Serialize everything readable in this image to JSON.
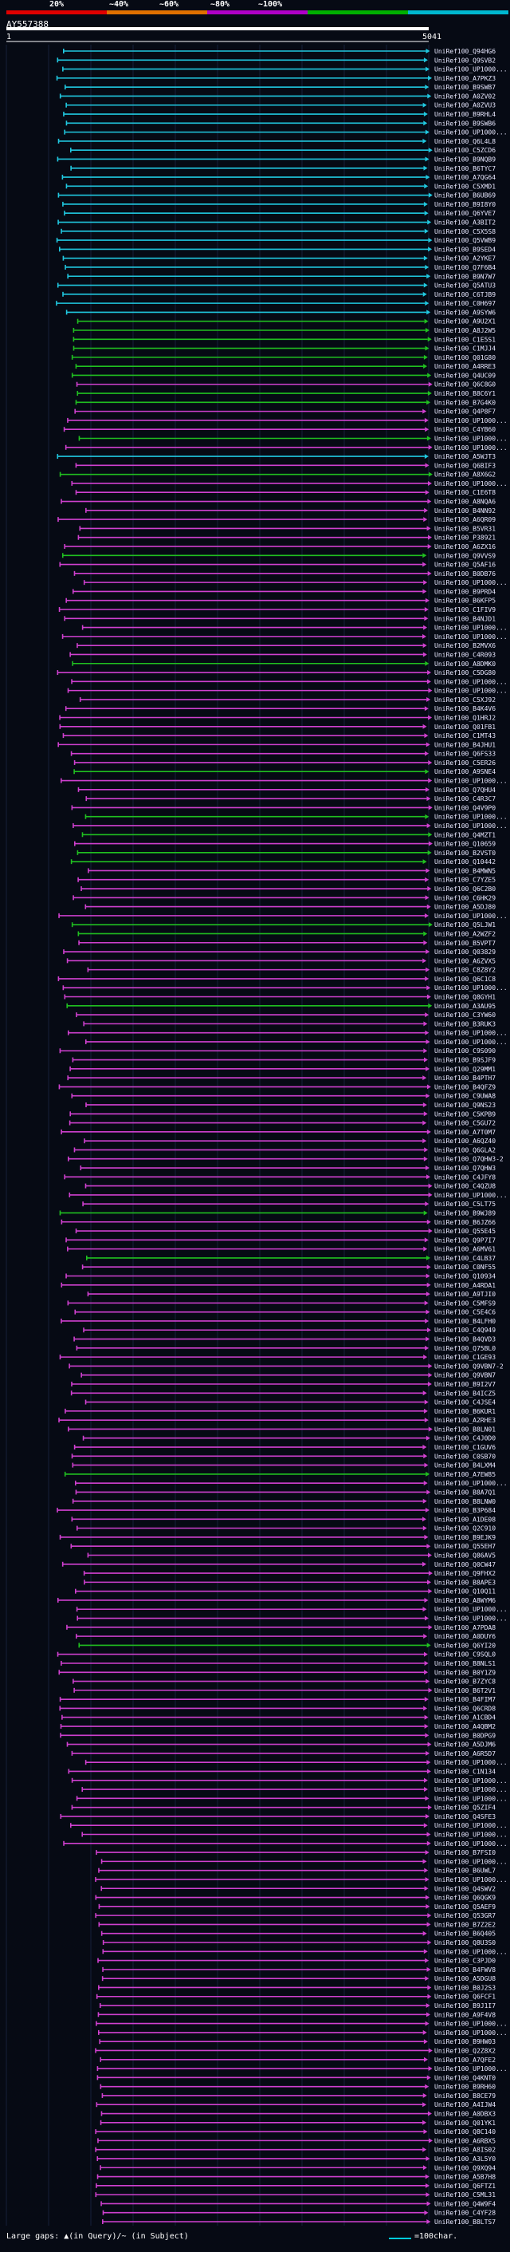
{
  "query": {
    "id": "AY557388",
    "start": "1",
    "end": "5041"
  },
  "colors": {
    "bg": "#060a14",
    "red": "#e00000",
    "orange": "#e07000",
    "purple": "#b000c8",
    "green": "#00b000",
    "cyan": "#00b8d0",
    "magenta": "#d040d0",
    "lime": "#20c020",
    "cyanline": "#20c8e0"
  },
  "identity_scale": [
    {
      "label": "20%",
      "color": "#e00000"
    },
    {
      "label": "~40%",
      "color": "#e07000"
    },
    {
      "label": "~60%",
      "color": "#b000c8"
    },
    {
      "label": "~80%",
      "color": "#00b000"
    },
    {
      "label": "~100%",
      "color": "#00b8d0"
    }
  ],
  "legend": {
    "text": "Large gaps: ▲(in Query)/~ (in Subject)",
    "scale": "=100char."
  },
  "hits": [
    {
      "label": "UniRef100_Q94HG6",
      "c": "c"
    },
    {
      "label": "UniRef100_Q9SVB2",
      "c": "c"
    },
    {
      "label": "UniRef100_UP1000...",
      "c": "c"
    },
    {
      "label": "UniRef100_A7PKZ3",
      "c": "c"
    },
    {
      "label": "UniRef100_B9SWB7",
      "c": "c"
    },
    {
      "label": "UniRef100_A0ZV02",
      "c": "c"
    },
    {
      "label": "UniRef100_A0ZVU3",
      "c": "c"
    },
    {
      "label": "UniRef100_B9RHL4",
      "c": "c"
    },
    {
      "label": "UniRef100_B9SWB6",
      "c": "c"
    },
    {
      "label": "UniRef100_UP1000...",
      "c": "c"
    },
    {
      "label": "UniRef100_Q6L4L8",
      "c": "c"
    },
    {
      "label": "UniRef100_C5ZCD6",
      "c": "c"
    },
    {
      "label": "UniRef100_B9NQB9",
      "c": "c"
    },
    {
      "label": "UniRef100_B6TYC7",
      "c": "c"
    },
    {
      "label": "UniRef100_A7QG64",
      "c": "c"
    },
    {
      "label": "UniRef100_C5XMD1",
      "c": "c"
    },
    {
      "label": "UniRef100_B6UB69",
      "c": "c"
    },
    {
      "label": "UniRef100_B9I8Y0",
      "c": "c"
    },
    {
      "label": "UniRef100_Q6YVE7",
      "c": "c"
    },
    {
      "label": "UniRef100_A3BIT2",
      "c": "c"
    },
    {
      "label": "UniRef100_C5X5S8",
      "c": "c"
    },
    {
      "label": "UniRef100_Q5VWB9",
      "c": "c"
    },
    {
      "label": "UniRef100_B9SED4",
      "c": "c"
    },
    {
      "label": "UniRef100_A2YKE7",
      "c": "c"
    },
    {
      "label": "UniRef100_Q7F6B4",
      "c": "c"
    },
    {
      "label": "UniRef100_B9N7W7",
      "c": "c"
    },
    {
      "label": "UniRef100_Q5ATU3",
      "c": "c"
    },
    {
      "label": "UniRef100_C6TJB9",
      "c": "c"
    },
    {
      "label": "UniRef100_C0H697",
      "c": "c"
    },
    {
      "label": "UniRef100_A9SYW6",
      "c": "c"
    },
    {
      "label": "UniRef100_A9U2X1",
      "c": "g"
    },
    {
      "label": "UniRef100_A8J2W5",
      "c": "g"
    },
    {
      "label": "UniRef100_C1E5S1",
      "c": "g"
    },
    {
      "label": "UniRef100_C1MJJ4",
      "c": "g"
    },
    {
      "label": "UniRef100_Q01G80",
      "c": "g"
    },
    {
      "label": "UniRef100_A4RRE3",
      "c": "g"
    },
    {
      "label": "UniRef100_Q4UC09",
      "c": "g"
    },
    {
      "label": "UniRef100_Q6C8G0",
      "c": "m"
    },
    {
      "label": "UniRef100_B8C6Y1",
      "c": "g"
    },
    {
      "label": "UniRef100_B7G4K0",
      "c": "g"
    },
    {
      "label": "UniRef100_Q4P8F7",
      "c": "m"
    },
    {
      "label": "UniRef100_UP1000...",
      "c": "m"
    },
    {
      "label": "UniRef100_C4YB60",
      "c": "m"
    },
    {
      "label": "UniRef100_UP1000...",
      "c": "g"
    },
    {
      "label": "UniRef100_UP1000...",
      "c": "m"
    },
    {
      "label": "UniRef100_A5WJT3",
      "c": "c"
    },
    {
      "label": "UniRef100_Q6BIF3",
      "c": "m"
    },
    {
      "label": "UniRef100_A8X6G2",
      "c": "g"
    },
    {
      "label": "UniRef100_UP1000...",
      "c": "m"
    },
    {
      "label": "UniRef100_C1E6T8",
      "c": "m"
    },
    {
      "label": "UniRef100_A8NQA6",
      "c": "m"
    },
    {
      "label": "UniRef100_B4NN92",
      "c": "m"
    },
    {
      "label": "UniRef100_A6QR09",
      "c": "m"
    },
    {
      "label": "UniRef100_B5VR31",
      "c": "m"
    },
    {
      "label": "UniRef100_P38921",
      "c": "m"
    },
    {
      "label": "UniRef100_A6ZX16",
      "c": "m"
    },
    {
      "label": "UniRef100_Q9VVS9",
      "c": "g"
    },
    {
      "label": "UniRef100_Q5AF16",
      "c": "m"
    },
    {
      "label": "UniRef100_B0DB76",
      "c": "m"
    },
    {
      "label": "UniRef100_UP1000...",
      "c": "m"
    },
    {
      "label": "UniRef100_B9PRD4",
      "c": "m"
    },
    {
      "label": "UniRef100_B6KFP5",
      "c": "m"
    },
    {
      "label": "UniRef100_C1FIV9",
      "c": "m"
    },
    {
      "label": "UniRef100_B4NJD1",
      "c": "m"
    },
    {
      "label": "UniRef100_UP1000...",
      "c": "m"
    },
    {
      "label": "UniRef100_UP1000...",
      "c": "m"
    },
    {
      "label": "UniRef100_B2MVX6",
      "c": "m"
    },
    {
      "label": "UniRef100_C4R093",
      "c": "m"
    },
    {
      "label": "UniRef100_A8DMK0",
      "c": "g"
    },
    {
      "label": "UniRef100_C5DG80",
      "c": "m"
    },
    {
      "label": "UniRef100_UP1000...",
      "c": "m"
    },
    {
      "label": "UniRef100_UP1000...",
      "c": "m"
    },
    {
      "label": "UniRef100_C5XJ92",
      "c": "m"
    },
    {
      "label": "UniRef100_B4K4V6",
      "c": "m"
    },
    {
      "label": "UniRef100_Q1HRJ2",
      "c": "m"
    },
    {
      "label": "UniRef100_Q01FB1",
      "c": "m"
    },
    {
      "label": "UniRef100_C1MT43",
      "c": "m"
    },
    {
      "label": "UniRef100_B4JHU1",
      "c": "m"
    },
    {
      "label": "UniRef100_Q6FS33",
      "c": "m"
    },
    {
      "label": "UniRef100_C5ER26",
      "c": "m"
    },
    {
      "label": "UniRef100_A9SNE4",
      "c": "g"
    },
    {
      "label": "UniRef100_UP1000...",
      "c": "m"
    },
    {
      "label": "UniRef100_Q7QHU4",
      "c": "m"
    },
    {
      "label": "UniRef100_C4R3C7",
      "c": "m"
    },
    {
      "label": "UniRef100_Q4V9P0",
      "c": "m"
    },
    {
      "label": "UniRef100_UP1000...",
      "c": "g"
    },
    {
      "label": "UniRef100_UP1000...",
      "c": "m"
    },
    {
      "label": "UniRef100_Q4MZT1",
      "c": "g"
    },
    {
      "label": "UniRef100_Q10659",
      "c": "m"
    },
    {
      "label": "UniRef100_B2VST0",
      "c": "g"
    },
    {
      "label": "UniRef100_Q10442",
      "c": "g"
    },
    {
      "label": "UniRef100_B4MWN5",
      "c": "m"
    },
    {
      "label": "UniRef100_C7YZE5",
      "c": "m"
    },
    {
      "label": "UniRef100_Q6C2B0",
      "c": "m"
    },
    {
      "label": "UniRef100_C6HK29",
      "c": "m"
    },
    {
      "label": "UniRef100_A5DJ80",
      "c": "m"
    },
    {
      "label": "UniRef100_UP1000...",
      "c": "m"
    },
    {
      "label": "UniRef100_Q5LJW1",
      "c": "g"
    },
    {
      "label": "UniRef100_A2WZF2",
      "c": "g"
    },
    {
      "label": "UniRef100_B5VPT7",
      "c": "m"
    },
    {
      "label": "UniRef100_Q03829",
      "c": "m"
    },
    {
      "label": "UniRef100_A6ZVX5",
      "c": "m"
    },
    {
      "label": "UniRef100_C8Z8Y2",
      "c": "m"
    },
    {
      "label": "UniRef100_Q6C1C8",
      "c": "m"
    },
    {
      "label": "UniRef100_UP1000...",
      "c": "m"
    },
    {
      "label": "UniRef100_Q8GYH1",
      "c": "m"
    },
    {
      "label": "UniRef100_A3AU95",
      "c": "g"
    },
    {
      "label": "UniRef100_C3YW60",
      "c": "m"
    },
    {
      "label": "UniRef100_B3RUK3",
      "c": "m"
    },
    {
      "label": "UniRef100_UP1000...",
      "c": "m"
    },
    {
      "label": "UniRef100_UP1000...",
      "c": "m"
    },
    {
      "label": "UniRef100_C9S090",
      "c": "m"
    },
    {
      "label": "UniRef100_B9SJF9",
      "c": "m"
    },
    {
      "label": "UniRef100_Q29MM1",
      "c": "m"
    },
    {
      "label": "UniRef100_B4PTH7",
      "c": "m"
    },
    {
      "label": "UniRef100_B4QFZ9",
      "c": "m"
    },
    {
      "label": "UniRef100_C9UWA8",
      "c": "m"
    },
    {
      "label": "UniRef100_Q9NS23",
      "c": "m"
    },
    {
      "label": "UniRef100_C5KPB9",
      "c": "m"
    },
    {
      "label": "UniRef100_C5GU72",
      "c": "m"
    },
    {
      "label": "UniRef100_A7T0M7",
      "c": "m"
    },
    {
      "label": "UniRef100_A6QZ40",
      "c": "m"
    },
    {
      "label": "UniRef100_Q6GLA2",
      "c": "m"
    },
    {
      "label": "UniRef100_Q7QHW3-2",
      "c": "m"
    },
    {
      "label": "UniRef100_Q7QHW3",
      "c": "m"
    },
    {
      "label": "UniRef100_C4JFY8",
      "c": "m"
    },
    {
      "label": "UniRef100_C4QZU8",
      "c": "m"
    },
    {
      "label": "UniRef100_UP1000...",
      "c": "m"
    },
    {
      "label": "UniRef100_C5LT75",
      "c": "m"
    },
    {
      "label": "UniRef100_B9WJ89",
      "c": "g"
    },
    {
      "label": "UniRef100_B6JZ66",
      "c": "m"
    },
    {
      "label": "UniRef100_Q55E45",
      "c": "m"
    },
    {
      "label": "UniRef100_Q9P7I7",
      "c": "m"
    },
    {
      "label": "UniRef100_A6MV61",
      "c": "m"
    },
    {
      "label": "UniRef100_C4LB37",
      "c": "g"
    },
    {
      "label": "UniRef100_C0NF55",
      "c": "m"
    },
    {
      "label": "UniRef100_Q10934",
      "c": "m"
    },
    {
      "label": "UniRef100_A4RDA1",
      "c": "m"
    },
    {
      "label": "UniRef100_A9TJI0",
      "c": "m"
    },
    {
      "label": "UniRef100_C5MFS9",
      "c": "m"
    },
    {
      "label": "UniRef100_C5E4C6",
      "c": "m"
    },
    {
      "label": "UniRef100_B4LFH0",
      "c": "m"
    },
    {
      "label": "UniRef100_C4Q949",
      "c": "m"
    },
    {
      "label": "UniRef100_B4QVD3",
      "c": "m"
    },
    {
      "label": "UniRef100_Q75BL0",
      "c": "m"
    },
    {
      "label": "UniRef100_C1GE93",
      "c": "m"
    },
    {
      "label": "UniRef100_Q9VBN7-2",
      "c": "m"
    },
    {
      "label": "UniRef100_Q9VBN7",
      "c": "m"
    },
    {
      "label": "UniRef100_B9I2V7",
      "c": "m"
    },
    {
      "label": "UniRef100_B4ICZ5",
      "c": "m"
    },
    {
      "label": "UniRef100_C4JSE4",
      "c": "m"
    },
    {
      "label": "UniRef100_B6KUR1",
      "c": "m"
    },
    {
      "label": "UniRef100_A2RHE3",
      "c": "m"
    },
    {
      "label": "UniRef100_B8LN01",
      "c": "m"
    },
    {
      "label": "UniRef100_C4J0D0",
      "c": "m"
    },
    {
      "label": "UniRef100_C1GUV6",
      "c": "m"
    },
    {
      "label": "UniRef100_C0SB70",
      "c": "m"
    },
    {
      "label": "UniRef100_B4LXM4",
      "c": "m"
    },
    {
      "label": "UniRef100_A7EW85",
      "c": "g"
    },
    {
      "label": "UniRef100_UP1000...",
      "c": "m"
    },
    {
      "label": "UniRef100_B8A7Q1",
      "c": "m"
    },
    {
      "label": "UniRef100_B8LNW0",
      "c": "m"
    },
    {
      "label": "UniRef100_B3P684",
      "c": "m"
    },
    {
      "label": "UniRef100_A1DE08",
      "c": "m"
    },
    {
      "label": "UniRef100_Q2C910",
      "c": "m"
    },
    {
      "label": "UniRef100_B9EJK9",
      "c": "m"
    },
    {
      "label": "UniRef100_Q55EH7",
      "c": "m"
    },
    {
      "label": "UniRef100_Q86AV5",
      "c": "m"
    },
    {
      "label": "UniRef100_Q0CW47",
      "c": "m"
    },
    {
      "label": "UniRef100_Q9FHX2",
      "c": "m"
    },
    {
      "label": "UniRef100_B8APE3",
      "c": "m"
    },
    {
      "label": "UniRef100_Q10Q11",
      "c": "m"
    },
    {
      "label": "UniRef100_A8WYM6",
      "c": "m"
    },
    {
      "label": "UniRef100_UP1000...",
      "c": "m"
    },
    {
      "label": "UniRef100_UP1000...",
      "c": "m"
    },
    {
      "label": "UniRef100_A7PDA8",
      "c": "m"
    },
    {
      "label": "UniRef100_A0DUY6",
      "c": "m"
    },
    {
      "label": "UniRef100_Q6YI20",
      "c": "g"
    },
    {
      "label": "UniRef100_C9SQL0",
      "c": "m"
    },
    {
      "label": "UniRef100_B8NLS1",
      "c": "m"
    },
    {
      "label": "UniRef100_B0Y1Z9",
      "c": "m"
    },
    {
      "label": "UniRef100_B7ZYC8",
      "c": "m"
    },
    {
      "label": "UniRef100_B6T2V1",
      "c": "m"
    },
    {
      "label": "UniRef100_B4FIM7",
      "c": "m"
    },
    {
      "label": "UniRef100_Q6CRD8",
      "c": "m"
    },
    {
      "label": "UniRef100_A1CBD4",
      "c": "m"
    },
    {
      "label": "UniRef100_A4QBM2",
      "c": "m"
    },
    {
      "label": "UniRef100_B0DPG9",
      "c": "m"
    },
    {
      "label": "UniRef100_A5DJM6",
      "c": "m"
    },
    {
      "label": "UniRef100_A6R5D7",
      "c": "m"
    },
    {
      "label": "UniRef100_UP1000...",
      "c": "m"
    },
    {
      "label": "UniRef100_C1N134",
      "c": "m"
    },
    {
      "label": "UniRef100_UP1000...",
      "c": "m"
    },
    {
      "label": "UniRef100_UP1000...",
      "c": "m"
    },
    {
      "label": "UniRef100_UP1000...",
      "c": "m"
    },
    {
      "label": "UniRef100_Q5ZIF4",
      "c": "m"
    },
    {
      "label": "UniRef100_Q4SFE3",
      "c": "m"
    },
    {
      "label": "UniRef100_UP1000...",
      "c": "m"
    },
    {
      "label": "UniRef100_UP1000...",
      "c": "m"
    },
    {
      "label": "UniRef100_UP1000...",
      "c": "m"
    },
    {
      "label": "UniRef100_B7FSI0",
      "c": "m"
    },
    {
      "label": "UniRef100_UP1000...",
      "c": "m"
    },
    {
      "label": "UniRef100_B6UWL7",
      "c": "m"
    },
    {
      "label": "UniRef100_UP1000...",
      "c": "m"
    },
    {
      "label": "UniRef100_Q4SWV2",
      "c": "m"
    },
    {
      "label": "UniRef100_Q6QGK9",
      "c": "m"
    },
    {
      "label": "UniRef100_Q5AEF9",
      "c": "m"
    },
    {
      "label": "UniRef100_Q53GR7",
      "c": "m"
    },
    {
      "label": "UniRef100_B7Z2E2",
      "c": "m"
    },
    {
      "label": "UniRef100_B6Q405",
      "c": "m"
    },
    {
      "label": "UniRef100_Q8U3S0",
      "c": "m"
    },
    {
      "label": "UniRef100_UP1000...",
      "c": "m"
    },
    {
      "label": "UniRef100_C3PJD0",
      "c": "m"
    },
    {
      "label": "UniRef100_B4FWV8",
      "c": "m"
    },
    {
      "label": "UniRef100_A5DGU8",
      "c": "m"
    },
    {
      "label": "UniRef100_B0J2S3",
      "c": "m"
    },
    {
      "label": "UniRef100_Q6FCF1",
      "c": "m"
    },
    {
      "label": "UniRef100_B9J1I7",
      "c": "m"
    },
    {
      "label": "UniRef100_A9F4V8",
      "c": "m"
    },
    {
      "label": "UniRef100_UP1000...",
      "c": "m"
    },
    {
      "label": "UniRef100_UP1000...",
      "c": "m"
    },
    {
      "label": "UniRef100_B9HW03",
      "c": "m"
    },
    {
      "label": "UniRef100_Q2Z8X2",
      "c": "m"
    },
    {
      "label": "UniRef100_A7QFE2",
      "c": "m"
    },
    {
      "label": "UniRef100_UP1000...",
      "c": "m"
    },
    {
      "label": "UniRef100_Q4KNT0",
      "c": "m"
    },
    {
      "label": "UniRef100_B9RH60",
      "c": "m"
    },
    {
      "label": "UniRef100_B8CE79",
      "c": "m"
    },
    {
      "label": "UniRef100_A4IJW4",
      "c": "m"
    },
    {
      "label": "UniRef100_A0DBX3",
      "c": "m"
    },
    {
      "label": "UniRef100_Q01YK1",
      "c": "m"
    },
    {
      "label": "UniRef100_Q8C140",
      "c": "m"
    },
    {
      "label": "UniRef100_A6RBX5",
      "c": "m"
    },
    {
      "label": "UniRef100_A8IS02",
      "c": "m"
    },
    {
      "label": "UniRef100_A3L5Y0",
      "c": "m"
    },
    {
      "label": "UniRef100_Q9XQ94",
      "c": "m"
    },
    {
      "label": "UniRef100_A5B7H8",
      "c": "m"
    },
    {
      "label": "UniRef100_Q6FTZ1",
      "c": "m"
    },
    {
      "label": "UniRef100_C5ML31",
      "c": "m"
    },
    {
      "label": "UniRef100_Q4W9F4",
      "c": "m"
    },
    {
      "label": "UniRef100_C4YF28",
      "c": "m"
    },
    {
      "label": "UniRef100_B8LTS7",
      "c": "m"
    }
  ]
}
